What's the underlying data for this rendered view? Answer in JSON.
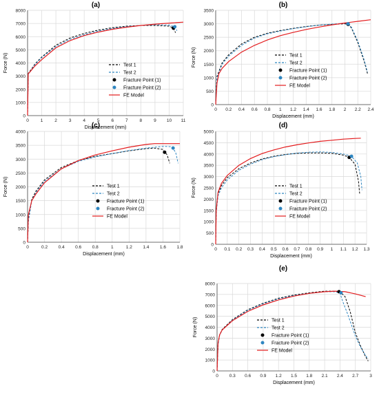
{
  "chart_data": [
    {
      "panel": "(a)",
      "type": "line",
      "xlabel": "Displacement (mm)",
      "ylabel": "Force (N)",
      "xlim": [
        0,
        11
      ],
      "ylim": [
        0,
        8000
      ],
      "xticks": [
        0,
        1,
        2,
        3,
        4,
        5,
        6,
        7,
        8,
        9,
        10,
        11
      ],
      "yticks": [
        0,
        1000,
        2000,
        3000,
        4000,
        5000,
        6000,
        7000,
        8000
      ],
      "legend": [
        "Test 1",
        "Test 2",
        "Fracture Point (1)",
        "Fracture Point (2)",
        "FE Model"
      ],
      "legend_position": "center-right",
      "series": [
        {
          "name": "Test 1",
          "style": "dash",
          "color": "#000000",
          "x": [
            0,
            0.05,
            0.15,
            0.5,
            1,
            2,
            3,
            4,
            5,
            6,
            7,
            8,
            9,
            10,
            10.3,
            10.45
          ],
          "y": [
            0,
            3200,
            3350,
            3900,
            4450,
            5350,
            5900,
            6250,
            6500,
            6680,
            6800,
            6850,
            6850,
            6800,
            6650,
            6300
          ]
        },
        {
          "name": "Test 2",
          "style": "dash",
          "color": "#2e86c1",
          "x": [
            0,
            0.05,
            0.15,
            0.5,
            1,
            2,
            3,
            4,
            5,
            6,
            7,
            8,
            9,
            10,
            10.4,
            10.55
          ],
          "y": [
            0,
            3150,
            3300,
            3850,
            4400,
            5250,
            5800,
            6150,
            6430,
            6620,
            6760,
            6850,
            6900,
            6880,
            6750,
            6450
          ]
        },
        {
          "name": "FE Model",
          "style": "solid",
          "color": "#e31a1c",
          "x": [
            0,
            0.05,
            0.15,
            0.5,
            1,
            2,
            3,
            4,
            5,
            6,
            7,
            8,
            9,
            10,
            11
          ],
          "y": [
            0,
            3200,
            3300,
            3750,
            4250,
            5150,
            5700,
            6080,
            6350,
            6560,
            6720,
            6850,
            6950,
            7030,
            7100
          ]
        }
      ],
      "fracture_points": [
        {
          "name": "Fracture Point (1)",
          "x": 10.3,
          "y": 6650,
          "color": "#000000"
        },
        {
          "name": "Fracture Point (2)",
          "x": 10.4,
          "y": 6750,
          "color": "#2e86c1"
        }
      ]
    },
    {
      "panel": "(b)",
      "type": "line",
      "xlabel": "Displacement (mm)",
      "ylabel": "Force (N)",
      "xlim": [
        0,
        2.4
      ],
      "ylim": [
        0,
        3500
      ],
      "xticks": [
        0,
        0.2,
        0.4,
        0.6,
        0.8,
        1,
        1.2,
        1.4,
        1.6,
        1.8,
        2,
        2.2,
        2.4
      ],
      "yticks": [
        0,
        500,
        1000,
        1500,
        2000,
        2500,
        3000,
        3500
      ],
      "legend": [
        "Test 1",
        "Test 2",
        "Fracture Point (1)",
        "Fracture Point (2)",
        "FE Model"
      ],
      "legend_position": "bottom-right",
      "series": [
        {
          "name": "Test 1",
          "style": "dash",
          "color": "#000000",
          "x": [
            0,
            0.02,
            0.1,
            0.2,
            0.4,
            0.6,
            0.8,
            1,
            1.2,
            1.4,
            1.6,
            1.8,
            2,
            2.05,
            2.1,
            2.2,
            2.3,
            2.35
          ],
          "y": [
            0,
            1050,
            1550,
            1850,
            2250,
            2500,
            2650,
            2750,
            2830,
            2900,
            2950,
            2980,
            3000,
            2980,
            2850,
            2300,
            1600,
            1150
          ]
        },
        {
          "name": "Test 2",
          "style": "dash",
          "color": "#2e86c1",
          "x": [
            0,
            0.02,
            0.1,
            0.2,
            0.4,
            0.6,
            0.8,
            1,
            1.2,
            1.4,
            1.6,
            1.8,
            2,
            2.05,
            2.1,
            2.2,
            2.3,
            2.35
          ],
          "y": [
            0,
            1000,
            1500,
            1800,
            2200,
            2470,
            2630,
            2730,
            2820,
            2890,
            2950,
            2990,
            3020,
            3000,
            2880,
            2350,
            1650,
            1200
          ]
        },
        {
          "name": "FE Model",
          "style": "solid",
          "color": "#e31a1c",
          "x": [
            0,
            0.02,
            0.05,
            0.1,
            0.2,
            0.4,
            0.6,
            0.8,
            1,
            1.2,
            1.4,
            1.6,
            1.8,
            2,
            2.2,
            2.4
          ],
          "y": [
            0,
            800,
            1150,
            1350,
            1600,
            1950,
            2200,
            2400,
            2560,
            2680,
            2790,
            2880,
            2960,
            3030,
            3090,
            3150
          ]
        }
      ],
      "fracture_points": [
        {
          "name": "Fracture Point (1)",
          "x": 2.05,
          "y": 2980,
          "color": "#000000"
        },
        {
          "name": "Fracture Point (2)",
          "x": 2.05,
          "y": 3000,
          "color": "#2e86c1"
        }
      ]
    },
    {
      "panel": "(c)",
      "type": "line",
      "xlabel": "Displacement (mm)",
      "ylabel": "Force (N)",
      "xlim": [
        0,
        1.8
      ],
      "ylim": [
        0,
        4000
      ],
      "xticks": [
        0,
        0.2,
        0.4,
        0.6,
        0.8,
        1,
        1.2,
        1.4,
        1.6,
        1.8
      ],
      "yticks": [
        0,
        500,
        1000,
        1500,
        2000,
        2500,
        3000,
        3500,
        4000
      ],
      "legend": [
        "Test 1",
        "Test 2",
        "Fracture Point (1)",
        "Fracture Point (2)",
        "FE Model"
      ],
      "legend_position": "bottom-right",
      "series": [
        {
          "name": "Test 1",
          "style": "dash",
          "color": "#000000",
          "x": [
            0,
            0.01,
            0.05,
            0.1,
            0.2,
            0.4,
            0.6,
            0.8,
            1,
            1.2,
            1.4,
            1.5,
            1.6,
            1.65,
            1.68
          ],
          "y": [
            0,
            800,
            1550,
            1850,
            2250,
            2700,
            2950,
            3100,
            3200,
            3300,
            3380,
            3400,
            3350,
            3150,
            2850
          ]
        },
        {
          "name": "Test 2",
          "style": "dash",
          "color": "#2e86c1",
          "x": [
            0,
            0.01,
            0.05,
            0.1,
            0.2,
            0.4,
            0.6,
            0.8,
            1,
            1.2,
            1.4,
            1.6,
            1.7,
            1.75,
            1.78
          ],
          "y": [
            0,
            750,
            1500,
            1800,
            2200,
            2650,
            2920,
            3080,
            3200,
            3310,
            3400,
            3460,
            3450,
            3250,
            2850
          ]
        },
        {
          "name": "FE Model",
          "style": "solid",
          "color": "#e31a1c",
          "x": [
            0,
            0.01,
            0.05,
            0.1,
            0.2,
            0.4,
            0.6,
            0.8,
            1,
            1.2,
            1.4,
            1.5,
            1.8
          ],
          "y": [
            0,
            1000,
            1500,
            1750,
            2150,
            2650,
            2950,
            3150,
            3300,
            3430,
            3530,
            3560,
            3560
          ]
        }
      ],
      "fracture_points": [
        {
          "name": "Fracture Point (1)",
          "x": 1.62,
          "y": 3250,
          "color": "#000000"
        },
        {
          "name": "Fracture Point (2)",
          "x": 1.72,
          "y": 3400,
          "color": "#2e86c1"
        }
      ]
    },
    {
      "panel": "(d)",
      "type": "line",
      "xlabel": "Displacement (mm)",
      "ylabel": "Force (N)",
      "xlim": [
        0,
        1.3
      ],
      "ylim": [
        0,
        5000
      ],
      "xticks": [
        0,
        0.1,
        0.2,
        0.3,
        0.4,
        0.5,
        0.6,
        0.7,
        0.8,
        0.9,
        1,
        1.1,
        1.2,
        1.3
      ],
      "yticks": [
        0,
        500,
        1000,
        1500,
        2000,
        2500,
        3000,
        3500,
        4000,
        4500,
        5000
      ],
      "legend": [
        "Test 1",
        "Test 2",
        "Fracture Point (1)",
        "Fracture Point (2)",
        "FE Model"
      ],
      "legend_position": "bottom-right",
      "series": [
        {
          "name": "Test 1",
          "style": "dash",
          "color": "#000000",
          "x": [
            0,
            0.005,
            0.02,
            0.05,
            0.1,
            0.2,
            0.3,
            0.4,
            0.5,
            0.6,
            0.7,
            0.8,
            0.9,
            1,
            1.1,
            1.15,
            1.2,
            1.23,
            1.24
          ],
          "y": [
            0,
            1500,
            2250,
            2600,
            2950,
            3350,
            3600,
            3780,
            3900,
            3980,
            4030,
            4050,
            4050,
            4030,
            3950,
            3850,
            3550,
            2800,
            2250
          ]
        },
        {
          "name": "Test 2",
          "style": "dash",
          "color": "#2e86c1",
          "x": [
            0,
            0.005,
            0.02,
            0.05,
            0.1,
            0.2,
            0.3,
            0.4,
            0.5,
            0.6,
            0.7,
            0.8,
            0.9,
            1,
            1.1,
            1.17,
            1.22,
            1.25,
            1.26
          ],
          "y": [
            0,
            1400,
            2150,
            2500,
            2850,
            3280,
            3550,
            3750,
            3880,
            3970,
            4040,
            4080,
            4090,
            4070,
            4000,
            3900,
            3600,
            3000,
            2400
          ]
        },
        {
          "name": "FE Model",
          "style": "solid",
          "color": "#e31a1c",
          "x": [
            0,
            0.005,
            0.02,
            0.05,
            0.1,
            0.2,
            0.3,
            0.4,
            0.5,
            0.6,
            0.7,
            0.8,
            0.9,
            1,
            1.1,
            1.2,
            1.25
          ],
          "y": [
            0,
            1500,
            2300,
            2700,
            3050,
            3500,
            3800,
            4020,
            4180,
            4310,
            4410,
            4490,
            4560,
            4610,
            4660,
            4690,
            4700
          ]
        }
      ],
      "fracture_points": [
        {
          "name": "Fracture Point (1)",
          "x": 1.15,
          "y": 3850,
          "color": "#000000"
        },
        {
          "name": "Fracture Point (2)",
          "x": 1.17,
          "y": 3900,
          "color": "#2e86c1"
        }
      ]
    },
    {
      "panel": "(e)",
      "type": "line",
      "xlabel": "Displacement (mm)",
      "ylabel": "Force (N)",
      "xlim": [
        0,
        3
      ],
      "ylim": [
        0,
        8000
      ],
      "xticks": [
        0,
        0.3,
        0.6,
        0.9,
        1.2,
        1.5,
        1.8,
        2.1,
        2.4,
        2.7,
        3
      ],
      "yticks": [
        0,
        1000,
        2000,
        3000,
        4000,
        5000,
        6000,
        7000,
        8000
      ],
      "legend": [
        "Test 1",
        "Test 2",
        "Fracture Point (1)",
        "Fracture Point (2)",
        "FE Model"
      ],
      "legend_position": "bottom-left",
      "series": [
        {
          "name": "Test 1",
          "style": "dash",
          "color": "#000000",
          "x": [
            0,
            0.02,
            0.05,
            0.1,
            0.3,
            0.6,
            0.9,
            1.2,
            1.5,
            1.8,
            2.1,
            2.3,
            2.4,
            2.5,
            2.6,
            2.7,
            2.8,
            2.9,
            2.95
          ],
          "y": [
            0,
            2500,
            3300,
            3800,
            4700,
            5600,
            6200,
            6650,
            6950,
            7150,
            7300,
            7300,
            7250,
            6800,
            5400,
            3500,
            2300,
            1300,
            900
          ]
        },
        {
          "name": "Test 2",
          "style": "dash",
          "color": "#2e86c1",
          "x": [
            0,
            0.02,
            0.05,
            0.1,
            0.3,
            0.6,
            0.9,
            1.2,
            1.5,
            1.8,
            2.1,
            2.3,
            2.4,
            2.45,
            2.55,
            2.7,
            2.8,
            2.9,
            2.95
          ],
          "y": [
            0,
            2400,
            3250,
            3750,
            4650,
            5550,
            6150,
            6600,
            6900,
            7100,
            7250,
            7250,
            7150,
            6400,
            5200,
            3200,
            2200,
            1400,
            1100
          ]
        },
        {
          "name": "FE Model",
          "style": "solid",
          "color": "#e31a1c",
          "x": [
            0,
            0.02,
            0.05,
            0.1,
            0.3,
            0.6,
            0.9,
            1.2,
            1.5,
            1.8,
            2.1,
            2.3,
            2.5,
            2.7,
            2.9
          ],
          "y": [
            0,
            2600,
            3300,
            3750,
            4600,
            5450,
            6050,
            6500,
            6850,
            7100,
            7250,
            7300,
            7250,
            7050,
            6800
          ]
        }
      ],
      "fracture_points": [
        {
          "name": "Fracture Point (1)",
          "x": 2.38,
          "y": 7250,
          "color": "#000000"
        },
        {
          "name": "Fracture Point (2)",
          "x": 2.42,
          "y": 7150,
          "color": "#2e86c1"
        }
      ]
    }
  ]
}
